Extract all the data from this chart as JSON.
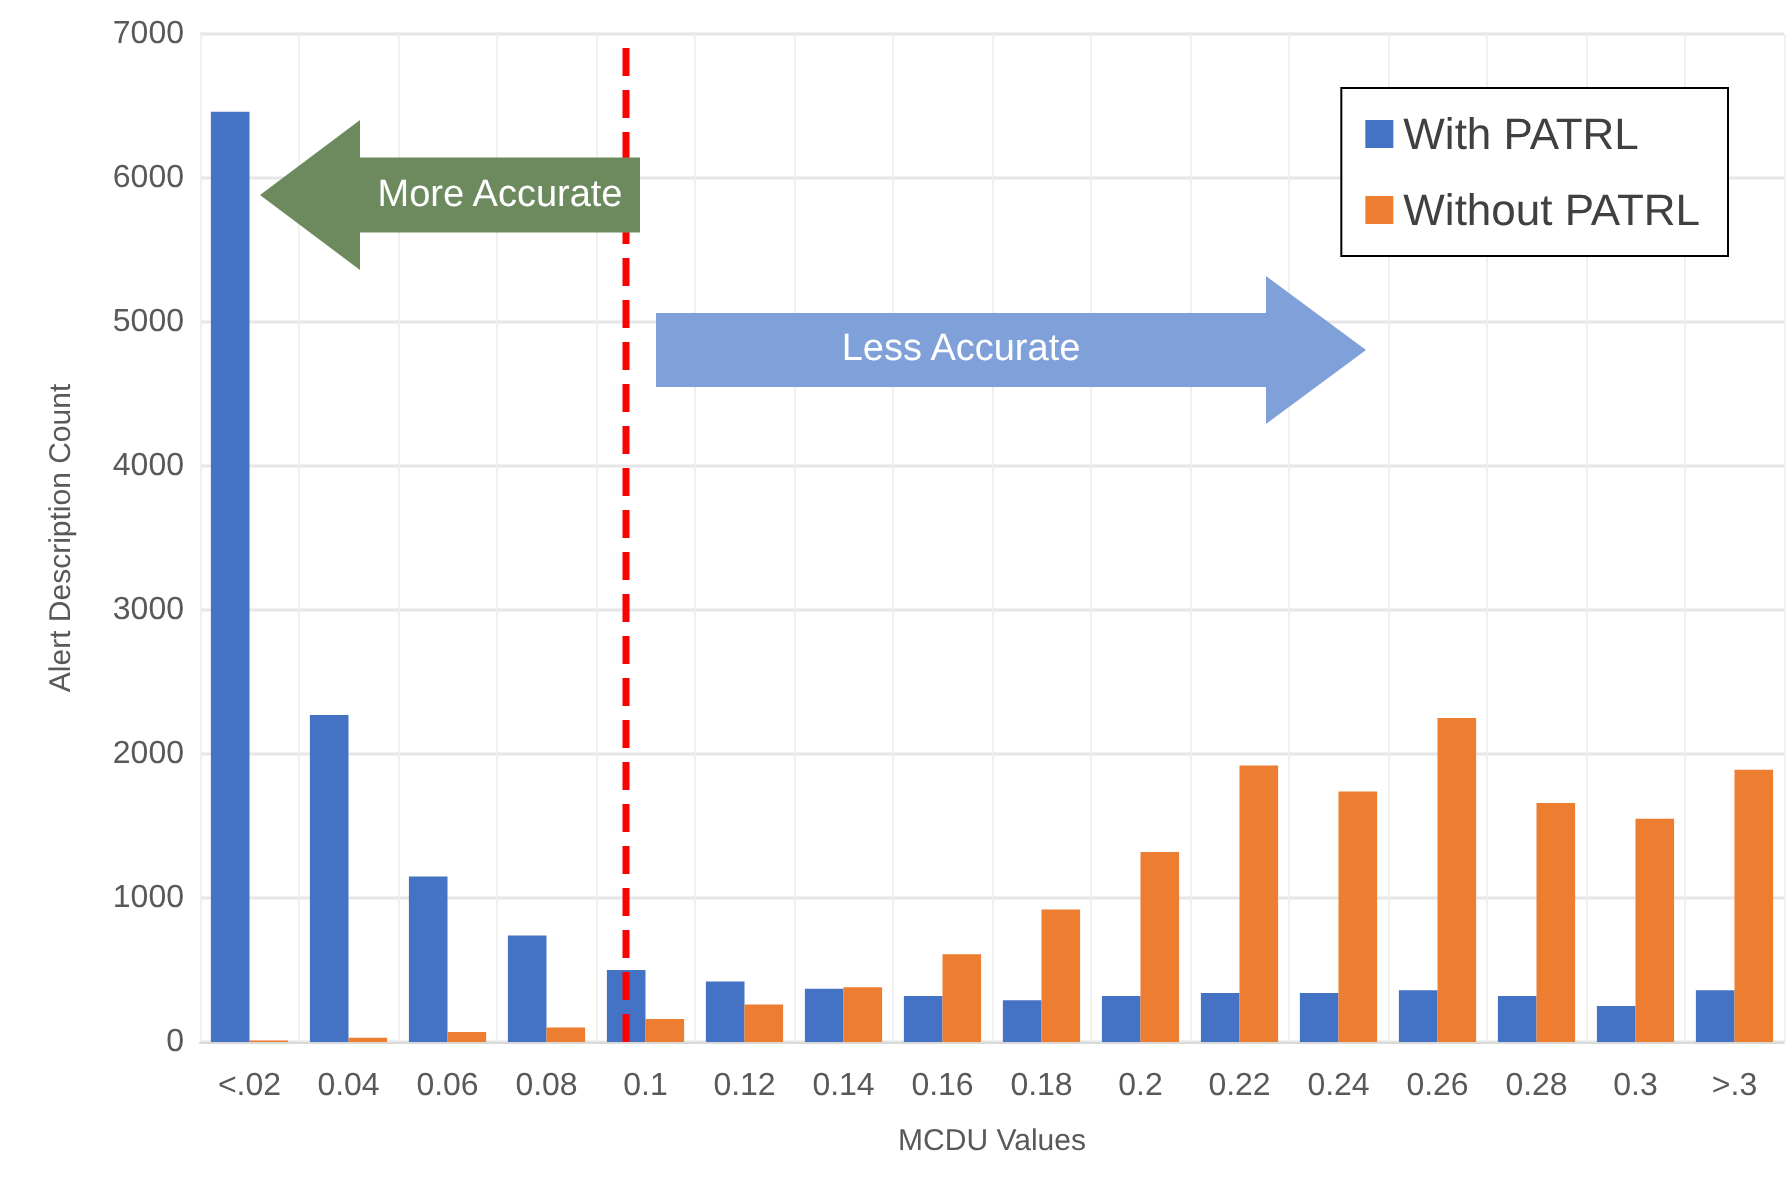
{
  "chart_data": {
    "type": "bar",
    "xlabel": "MCDU Values",
    "ylabel": "Alert Description Count",
    "categories": [
      "<.02",
      "0.04",
      "0.06",
      "0.08",
      "0.1",
      "0.12",
      "0.14",
      "0.16",
      "0.18",
      "0.2",
      "0.22",
      "0.24",
      "0.26",
      "0.28",
      "0.3",
      ">.3"
    ],
    "series": [
      {
        "name": "With PATRL",
        "color": "#4472c4",
        "values": [
          6460,
          2270,
          1150,
          740,
          500,
          420,
          370,
          320,
          290,
          320,
          340,
          340,
          360,
          320,
          250,
          360
        ]
      },
      {
        "name": "Without PATRL",
        "color": "#ed7d31",
        "values": [
          10,
          30,
          70,
          100,
          160,
          260,
          380,
          610,
          920,
          1320,
          1920,
          1740,
          2250,
          1660,
          1550,
          1890
        ]
      }
    ],
    "ylim": [
      0,
      7000
    ],
    "yticks": [
      0,
      1000,
      2000,
      3000,
      4000,
      5000,
      6000,
      7000
    ],
    "grid": true,
    "legend": "top right",
    "ref_lines": [
      {
        "axis": "x",
        "value": "0.1",
        "color": "#ff0000",
        "line_style": "dashed"
      }
    ],
    "annotations": [
      "More Accurate",
      "Less Accurate"
    ]
  }
}
